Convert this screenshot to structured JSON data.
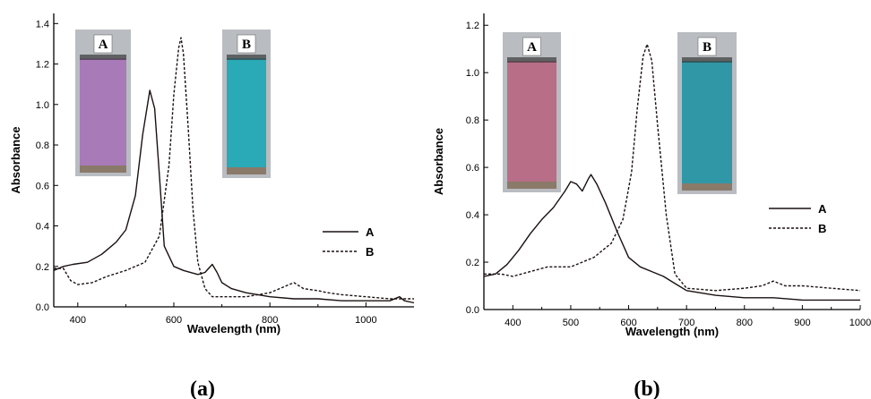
{
  "chart_data": [
    {
      "type": "line",
      "panel_label": "(a)",
      "xlabel": "Wavelength (nm)",
      "ylabel": "Absorbance",
      "xlim": [
        350,
        1100
      ],
      "ylim": [
        0,
        1.45
      ],
      "xticks": [
        400,
        600,
        800,
        1000
      ],
      "yticks": [
        0.0,
        0.2,
        0.4,
        0.6,
        0.8,
        1.0,
        1.2,
        1.4
      ],
      "ytick_labels": [
        "0.0",
        "0.2",
        "0.4",
        "0.6",
        "0.8",
        "1.0",
        "1.2",
        "1.4"
      ],
      "legend_position": "center-right",
      "series": [
        {
          "name": "A",
          "style": "solid",
          "x": [
            350,
            370,
            390,
            420,
            450,
            480,
            500,
            520,
            535,
            550,
            560,
            570,
            580,
            600,
            620,
            650,
            665,
            680,
            690,
            700,
            720,
            750,
            800,
            850,
            900,
            950,
            1000,
            1050,
            1070,
            1080,
            1100
          ],
          "y": [
            0.18,
            0.2,
            0.21,
            0.22,
            0.26,
            0.32,
            0.38,
            0.55,
            0.85,
            1.07,
            0.98,
            0.65,
            0.3,
            0.2,
            0.18,
            0.16,
            0.17,
            0.21,
            0.17,
            0.12,
            0.09,
            0.07,
            0.05,
            0.04,
            0.04,
            0.03,
            0.03,
            0.03,
            0.05,
            0.03,
            0.02
          ]
        },
        {
          "name": "B",
          "style": "dashed",
          "x": [
            350,
            370,
            385,
            400,
            430,
            460,
            500,
            540,
            570,
            590,
            600,
            610,
            615,
            620,
            630,
            640,
            650,
            665,
            680,
            700,
            750,
            800,
            830,
            850,
            870,
            900,
            920,
            950,
            1000,
            1050,
            1100
          ],
          "y": [
            0.19,
            0.19,
            0.13,
            0.11,
            0.12,
            0.15,
            0.18,
            0.22,
            0.35,
            0.7,
            1.05,
            1.28,
            1.33,
            1.25,
            0.88,
            0.48,
            0.22,
            0.09,
            0.05,
            0.05,
            0.05,
            0.07,
            0.1,
            0.12,
            0.09,
            0.08,
            0.07,
            0.06,
            0.05,
            0.04,
            0.04
          ]
        }
      ],
      "insets": [
        {
          "label": "A",
          "color": "#a87ab8"
        },
        {
          "label": "B",
          "color": "#2aa9b6"
        }
      ]
    },
    {
      "type": "line",
      "panel_label": "(b)",
      "xlabel": "Wavelength (nm)",
      "ylabel": "Absorbance",
      "xlim": [
        350,
        1000
      ],
      "ylim": [
        0,
        1.25
      ],
      "xticks": [
        400,
        500,
        600,
        700,
        800,
        900,
        1000
      ],
      "yticks": [
        0.0,
        0.2,
        0.4,
        0.6,
        0.8,
        1.0,
        1.2
      ],
      "ytick_labels": [
        "0.0",
        "0.2",
        "0.4",
        "0.6",
        "0.8",
        "1.0",
        "1.2"
      ],
      "legend_position": "center-right",
      "series": [
        {
          "name": "A",
          "style": "solid",
          "x": [
            350,
            370,
            390,
            410,
            430,
            450,
            470,
            490,
            500,
            510,
            520,
            530,
            535,
            545,
            560,
            580,
            600,
            620,
            640,
            660,
            680,
            700,
            750,
            800,
            850,
            900,
            950,
            1000
          ],
          "y": [
            0.14,
            0.15,
            0.19,
            0.25,
            0.32,
            0.38,
            0.43,
            0.5,
            0.54,
            0.53,
            0.5,
            0.55,
            0.57,
            0.53,
            0.45,
            0.33,
            0.22,
            0.18,
            0.16,
            0.14,
            0.11,
            0.08,
            0.06,
            0.05,
            0.05,
            0.04,
            0.04,
            0.04
          ]
        },
        {
          "name": "B",
          "style": "dashed",
          "x": [
            350,
            380,
            400,
            430,
            460,
            500,
            540,
            570,
            590,
            605,
            615,
            625,
            632,
            640,
            650,
            665,
            680,
            700,
            750,
            800,
            830,
            850,
            870,
            900,
            950,
            1000
          ],
          "y": [
            0.15,
            0.15,
            0.14,
            0.16,
            0.18,
            0.18,
            0.22,
            0.28,
            0.38,
            0.58,
            0.85,
            1.07,
            1.12,
            1.05,
            0.78,
            0.4,
            0.15,
            0.09,
            0.08,
            0.09,
            0.1,
            0.12,
            0.1,
            0.1,
            0.09,
            0.08
          ]
        }
      ],
      "insets": [
        {
          "label": "A",
          "color": "#b86e86"
        },
        {
          "label": "B",
          "color": "#3097a6"
        }
      ]
    }
  ]
}
